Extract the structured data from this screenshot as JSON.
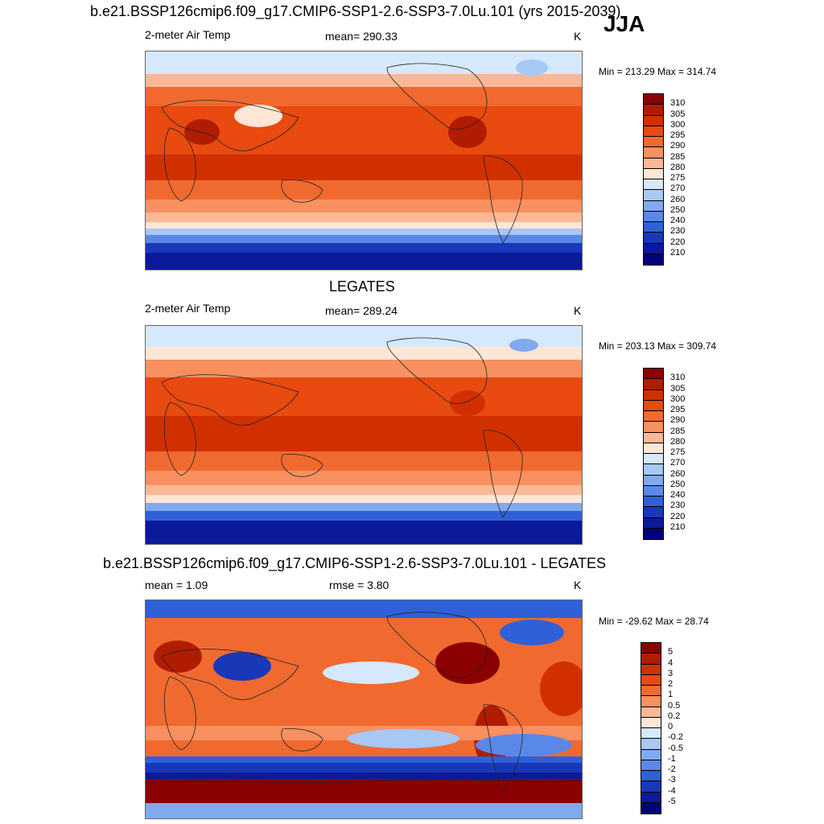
{
  "season": "JJA",
  "panels": [
    {
      "title": "b.e21.BSSP126cmip6.f09_g17.CMIP6-SSP1-2.6-SSP3-7.0Lu.101 (yrs 2015-2039)",
      "left": "2-meter Air Temp",
      "center": "mean= 290.33",
      "units": "K",
      "minmax": "Min = 213.29 Max = 314.74",
      "levels": [
        "310",
        "305",
        "300",
        "295",
        "290",
        "285",
        "280",
        "275",
        "270",
        "260",
        "250",
        "240",
        "230",
        "220",
        "210"
      ],
      "colors": [
        "#8b0000",
        "#b01c00",
        "#d03000",
        "#e84a10",
        "#f06a30",
        "#f89060",
        "#fbb896",
        "#fde6d6",
        "#d6e8fb",
        "#a8c8f5",
        "#80aaf0",
        "#5a88e8",
        "#3060d8",
        "#1838b8",
        "#0a1a98",
        "#00007a"
      ]
    },
    {
      "title": "LEGATES",
      "left": "2-meter Air Temp",
      "center": "mean= 289.24",
      "units": "K",
      "minmax": "Min = 203.13 Max = 309.74",
      "levels": [
        "310",
        "305",
        "300",
        "295",
        "290",
        "285",
        "280",
        "275",
        "270",
        "260",
        "250",
        "240",
        "230",
        "220",
        "210"
      ],
      "colors": [
        "#8b0000",
        "#b01c00",
        "#d03000",
        "#e84a10",
        "#f06a30",
        "#f89060",
        "#fbb896",
        "#fde6d6",
        "#d6e8fb",
        "#a8c8f5",
        "#80aaf0",
        "#5a88e8",
        "#3060d8",
        "#1838b8",
        "#0a1a98",
        "#00007a"
      ]
    },
    {
      "title": "b.e21.BSSP126cmip6.f09_g17.CMIP6-SSP1-2.6-SSP3-7.0Lu.101 - LEGATES",
      "left": "mean =   1.09",
      "center": "rmse =   3.80",
      "units": "K",
      "minmax": "Min = -29.62 Max =  28.74",
      "levels": [
        "5",
        "4",
        "3",
        "2",
        "1",
        "0.5",
        "0.2",
        "0",
        "-0.2",
        "-0.5",
        "-1",
        "-2",
        "-3",
        "-4",
        "-5"
      ],
      "colors": [
        "#8b0000",
        "#b01c00",
        "#d03000",
        "#e84a10",
        "#f06a30",
        "#f89060",
        "#fbb896",
        "#fde6d6",
        "#d6e8fb",
        "#a8c8f5",
        "#80aaf0",
        "#5a88e8",
        "#3060d8",
        "#1838b8",
        "#0a1a98",
        "#00007a"
      ]
    }
  ]
}
